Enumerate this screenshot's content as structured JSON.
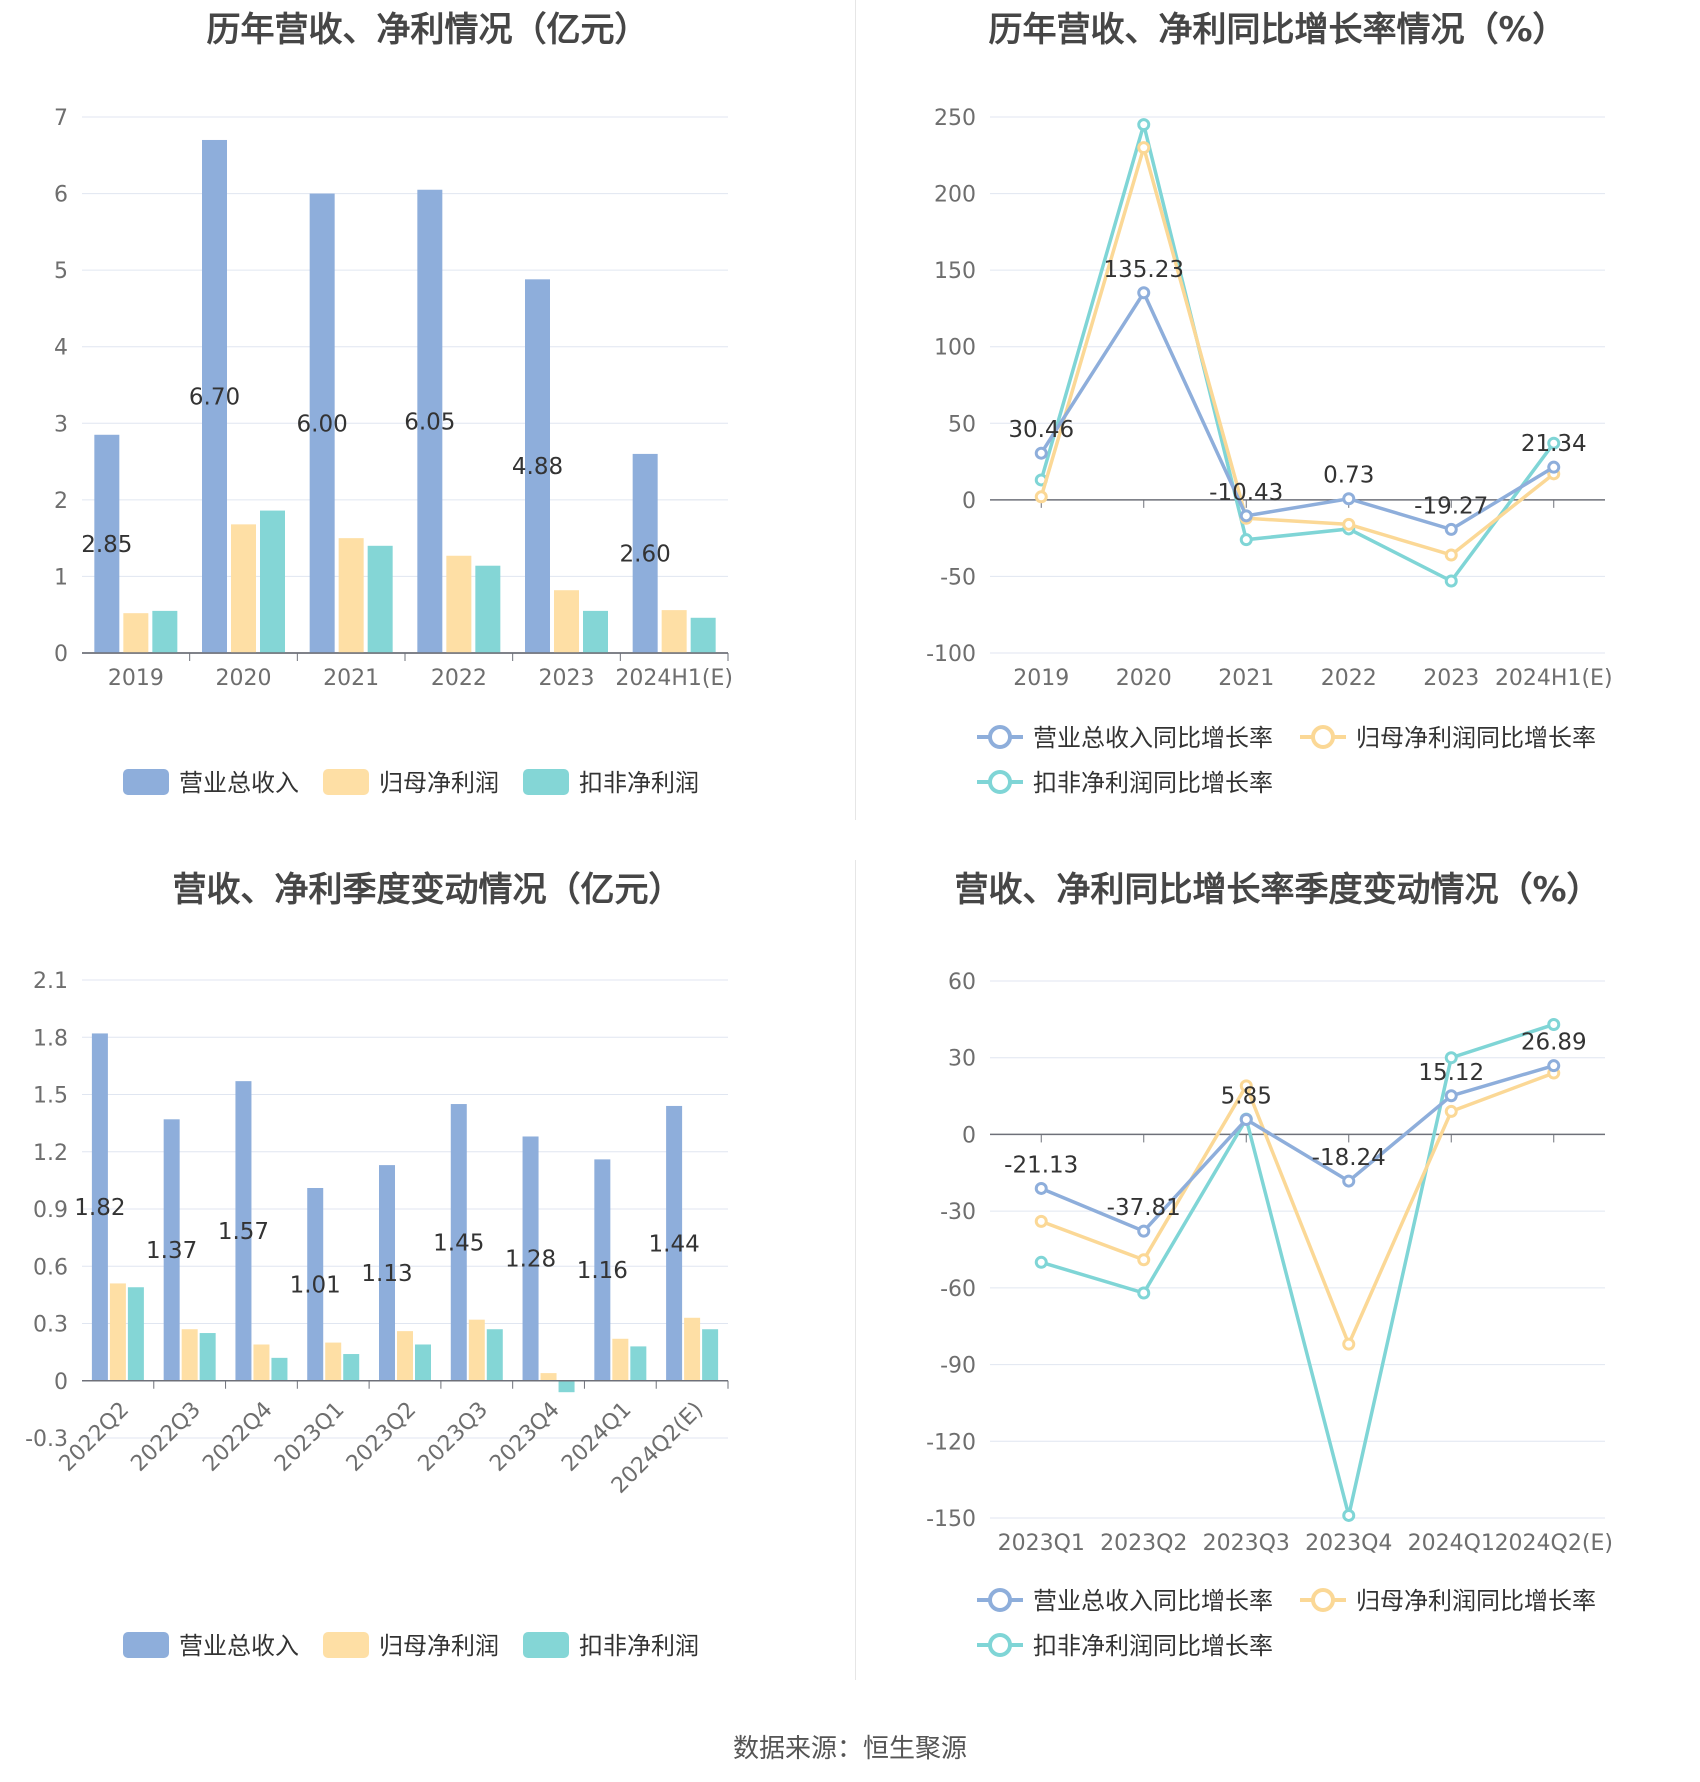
{
  "source": "数据来源：恒生聚源",
  "colors": {
    "revenue": "#8eaedb",
    "netprofit": "#fedfa5",
    "deducted": "#84d6d6",
    "line_revenue": "#8eaedb",
    "line_netprofit": "#fbd896",
    "line_deducted": "#7fd5d6",
    "grid": "#e0e6f1",
    "axis": "#6e7079"
  },
  "panels": [
    {
      "title": "历年营收、净利情况（亿元）",
      "chart_data": {
        "type": "bar",
        "categories": [
          "2019",
          "2020",
          "2021",
          "2022",
          "2023",
          "2024H1(E)"
        ],
        "ylim": [
          0,
          7
        ],
        "yticks": [
          "0",
          "1",
          "2",
          "3",
          "4",
          "5",
          "6",
          "7"
        ],
        "series": [
          {
            "name": "营业总收入",
            "values": [
              2.85,
              6.7,
              6.0,
              6.05,
              4.88,
              2.6
            ],
            "labels": [
              "2.85",
              "6.70",
              "6.00",
              "6.05",
              "4.88",
              "2.60"
            ]
          },
          {
            "name": "归母净利润",
            "values": [
              0.52,
              1.68,
              1.5,
              1.27,
              0.82,
              0.56
            ]
          },
          {
            "name": "扣非净利润",
            "values": [
              0.55,
              1.86,
              1.4,
              1.14,
              0.55,
              0.46
            ]
          }
        ]
      }
    },
    {
      "title": "历年营收、净利同比增长率情况（%）",
      "chart_data": {
        "type": "line",
        "categories": [
          "2019",
          "2020",
          "2021",
          "2022",
          "2023",
          "2024H1(E)"
        ],
        "ylim": [
          -100,
          250
        ],
        "yticks": [
          "-100",
          "-50",
          "0",
          "50",
          "100",
          "150",
          "200",
          "250"
        ],
        "series": [
          {
            "name": "营业总收入同比增长率",
            "values": [
              30.46,
              135.23,
              -10.43,
              0.73,
              -19.27,
              21.34
            ],
            "labels": [
              "30.46",
              "135.23",
              "-10.43",
              "0.73",
              "-19.27",
              "21.34"
            ]
          },
          {
            "name": "归母净利润同比增长率",
            "values": [
              2,
              230,
              -12,
              -16,
              -36,
              17
            ]
          },
          {
            "name": "扣非净利润同比增长率",
            "values": [
              13,
              245,
              -26,
              -19,
              -53,
              37
            ]
          }
        ]
      }
    },
    {
      "title": "营收、净利季度变动情况（亿元）",
      "chart_data": {
        "type": "bar",
        "categories": [
          "2022Q2",
          "2022Q3",
          "2022Q4",
          "2023Q1",
          "2023Q2",
          "2023Q3",
          "2023Q4",
          "2024Q1",
          "2024Q2(E)"
        ],
        "ylim": [
          -0.3,
          2.1
        ],
        "yticks": [
          "-0.3",
          "0",
          "0.3",
          "0.6",
          "0.9",
          "1.2",
          "1.5",
          "1.8",
          "2.1"
        ],
        "series": [
          {
            "name": "营业总收入",
            "values": [
              1.82,
              1.37,
              1.57,
              1.01,
              1.13,
              1.45,
              1.28,
              1.16,
              1.44
            ],
            "labels": [
              "1.82",
              "1.37",
              "1.57",
              "1.01",
              "1.13",
              "1.45",
              "1.28",
              "1.16",
              "1.44"
            ]
          },
          {
            "name": "归母净利润",
            "values": [
              0.51,
              0.27,
              0.19,
              0.2,
              0.26,
              0.32,
              0.04,
              0.22,
              0.33
            ]
          },
          {
            "name": "扣非净利润",
            "values": [
              0.49,
              0.25,
              0.12,
              0.14,
              0.19,
              0.27,
              -0.06,
              0.18,
              0.27
            ]
          }
        ]
      }
    },
    {
      "title": "营收、净利同比增长率季度变动情况（%）",
      "chart_data": {
        "type": "line",
        "categories": [
          "2023Q1",
          "2023Q2",
          "2023Q3",
          "2023Q4",
          "2024Q1",
          "2024Q2(E)"
        ],
        "ylim": [
          -150,
          60
        ],
        "yticks": [
          "-150",
          "-120",
          "-90",
          "-60",
          "-30",
          "0",
          "30",
          "60"
        ],
        "series": [
          {
            "name": "营业总收入同比增长率",
            "values": [
              -21.13,
              -37.81,
              5.85,
              -18.24,
              15.12,
              26.89
            ],
            "labels": [
              "-21.13",
              "-37.81",
              "5.85",
              "-18.24",
              "15.12",
              "26.89"
            ]
          },
          {
            "name": "归母净利润同比增长率",
            "values": [
              -34,
              -49,
              19,
              -82,
              9,
              24
            ]
          },
          {
            "name": "扣非净利润同比增长率",
            "values": [
              -50,
              -62,
              6,
              -149,
              30,
              43
            ]
          }
        ]
      }
    }
  ]
}
